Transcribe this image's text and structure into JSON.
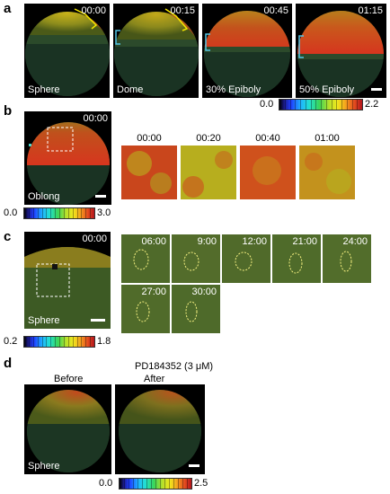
{
  "panel_a": {
    "label": "a",
    "frames": [
      {
        "time": "00:00",
        "stage": "Sphere"
      },
      {
        "time": "00:15",
        "stage": "Dome"
      },
      {
        "time": "00:45",
        "stage": "30% Epiboly"
      },
      {
        "time": "01:15",
        "stage": "50% Epiboly"
      }
    ],
    "colorbar": {
      "min": "0.0",
      "max": "2.2"
    }
  },
  "panel_b": {
    "label": "b",
    "main": {
      "time": "00:00",
      "stage": "Oblong"
    },
    "crops": [
      "00:00",
      "00:20",
      "00:40",
      "01:00"
    ],
    "colorbar": {
      "min": "0.0",
      "max": "3.0"
    }
  },
  "panel_c": {
    "label": "c",
    "main": {
      "time": "00:00",
      "stage": "Sphere"
    },
    "crops": [
      "06:00",
      "9:00",
      "12:00",
      "21:00",
      "24:00",
      "27:00",
      "30:00"
    ],
    "colorbar": {
      "min": "0.2",
      "max": "1.8"
    }
  },
  "panel_d": {
    "label": "d",
    "treatment": "PD184352 (3 μM)",
    "before": "Before",
    "after": "After",
    "stage": "Sphere",
    "colorbar": {
      "min": "0.0",
      "max": "2.5"
    }
  },
  "colors": {
    "tile_bg": "#000000",
    "text_on_image": "#ffffff",
    "bracket_yellow": "#f2e600",
    "bracket_cyan": "#54c6e6",
    "roi_dashed": "#ffffff",
    "cell_outline": "#f5f080"
  }
}
